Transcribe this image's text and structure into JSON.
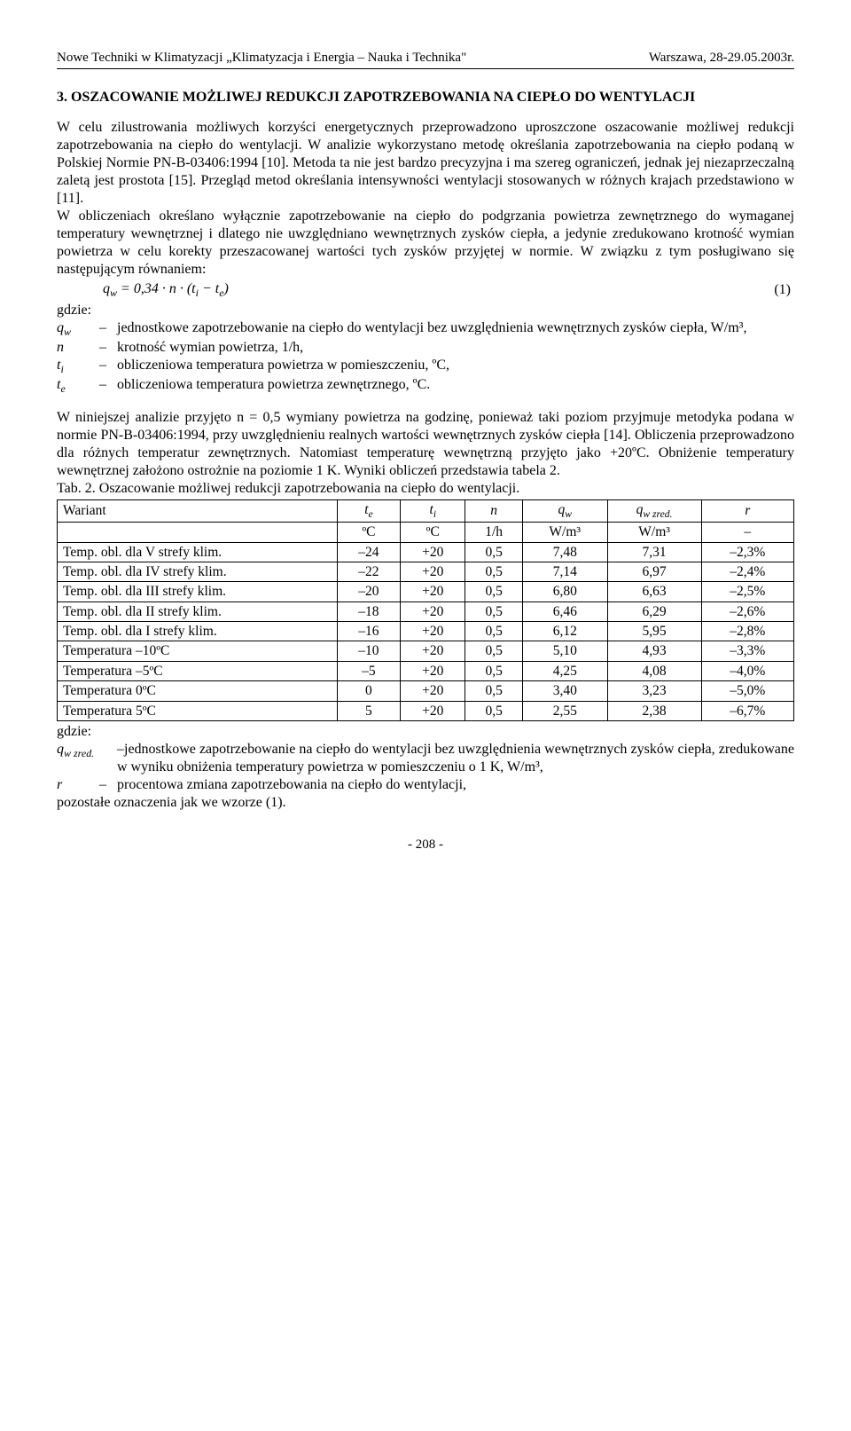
{
  "header": {
    "left": "Nowe Techniki w Klimatyzacji „Klimatyzacja i Energia – Nauka i Technika\"",
    "right": "Warszawa, 28-29.05.2003r."
  },
  "section": {
    "number": "3.",
    "title": "OSZACOWANIE MOŻLIWEJ REDUKCJI ZAPOTRZEBOWANIA NA CIEPŁO DO WENTYLACJI"
  },
  "para1": "W celu zilustrowania możliwych korzyści energetycznych przeprowadzono uproszczone oszacowanie możliwej redukcji zapotrzebowania na ciepło do wentylacji. W analizie wykorzystano metodę określania zapotrzebowania na ciepło podaną w Polskiej Normie PN-B-03406:1994 [10]. Metoda ta nie jest bardzo precyzyjna i ma szereg ograniczeń, jednak jej niezaprzeczalną zaletą jest prostota [15]. Przegląd metod określania intensywności wentylacji stosowanych w różnych krajach przedstawiono w [11].",
  "para2": "W obliczeniach określano wyłącznie zapotrzebowanie na ciepło do podgrzania powietrza zewnętrznego do wymaganej temperatury wewnętrznej i dlatego nie uwzględniano wewnętrznych zysków ciepła, a jedynie zredukowano krotność wymian powietrza w celu korekty przeszacowanej wartości tych zysków przyjętej w normie. W związku z tym posługiwano się następującym równaniem:",
  "equation": {
    "text": "q_w = 0,34 · n · (t_i − t_e)",
    "number": "(1)"
  },
  "gdzie": "gdzie:",
  "defs1": [
    {
      "sym": "q_w",
      "txt": "jednostkowe zapotrzebowanie na ciepło do wentylacji bez uwzględnienia wewnętrznych zysków ciepła, W/m³,"
    },
    {
      "sym": "n",
      "txt": "krotność wymian powietrza, 1/h,"
    },
    {
      "sym": "t_i",
      "txt": "obliczeniowa temperatura powietrza w pomieszczeniu, ºC,"
    },
    {
      "sym": "t_e",
      "txt": "obliczeniowa temperatura powietrza zewnętrznego, ºC."
    }
  ],
  "para3": "W niniejszej analizie przyjęto n = 0,5 wymiany powietrza na godzinę, ponieważ taki poziom przyjmuje metodyka podana w normie PN-B-03406:1994, przy uwzględnieniu realnych wartości wewnętrznych zysków ciepła [14]. Obliczenia przeprowadzono dla różnych temperatur zewnętrznych. Natomiast temperaturę wewnętrzną przyjęto jako +20ºC. Obniżenie temperatury wewnętrznej założono ostrożnie na poziomie 1 K. Wyniki obliczeń przedstawia tabela 2.",
  "table": {
    "caption": "Tab. 2. Oszacowanie możliwej redukcji zapotrzebowania na ciepło do wentylacji.",
    "header1": [
      "Wariant",
      "t_e",
      "t_i",
      "n",
      "q_w",
      "q_w zred.",
      "r"
    ],
    "header2": [
      "",
      "ºC",
      "ºC",
      "1/h",
      "W/m³",
      "W/m³",
      "–"
    ],
    "rows": [
      [
        "Temp. obl. dla V strefy klim.",
        "–24",
        "+20",
        "0,5",
        "7,48",
        "7,31",
        "–2,3%"
      ],
      [
        "Temp. obl. dla IV strefy klim.",
        "–22",
        "+20",
        "0,5",
        "7,14",
        "6,97",
        "–2,4%"
      ],
      [
        "Temp. obl. dla III strefy klim.",
        "–20",
        "+20",
        "0,5",
        "6,80",
        "6,63",
        "–2,5%"
      ],
      [
        "Temp. obl. dla II strefy klim.",
        "–18",
        "+20",
        "0,5",
        "6,46",
        "6,29",
        "–2,6%"
      ],
      [
        "Temp. obl. dla I strefy klim.",
        "–16",
        "+20",
        "0,5",
        "6,12",
        "5,95",
        "–2,8%"
      ],
      [
        "Temperatura –10ºC",
        "–10",
        "+20",
        "0,5",
        "5,10",
        "4,93",
        "–3,3%"
      ],
      [
        "Temperatura –5ºC",
        "–5",
        "+20",
        "0,5",
        "4,25",
        "4,08",
        "–4,0%"
      ],
      [
        "Temperatura 0ºC",
        "0",
        "+20",
        "0,5",
        "3,40",
        "3,23",
        "–5,0%"
      ],
      [
        "Temperatura 5ºC",
        "5",
        "+20",
        "0,5",
        "2,55",
        "2,38",
        "–6,7%"
      ]
    ]
  },
  "defs2_intro": "gdzie:",
  "defs2": [
    {
      "sym": "q_w zred.",
      "txt": "jednostkowe zapotrzebowanie na ciepło do wentylacji bez uwzględnienia wewnętrznych zysków ciepła, zredukowane w wyniku obniżenia temperatury powietrza w pomieszczeniu o 1 K, W/m³,"
    },
    {
      "sym": "r",
      "txt": "procentowa zmiana zapotrzebowania na ciepło do wentylacji,"
    }
  ],
  "defs2_tail": "pozostałe oznaczenia jak we wzorze (1).",
  "page_number": "- 208 -"
}
